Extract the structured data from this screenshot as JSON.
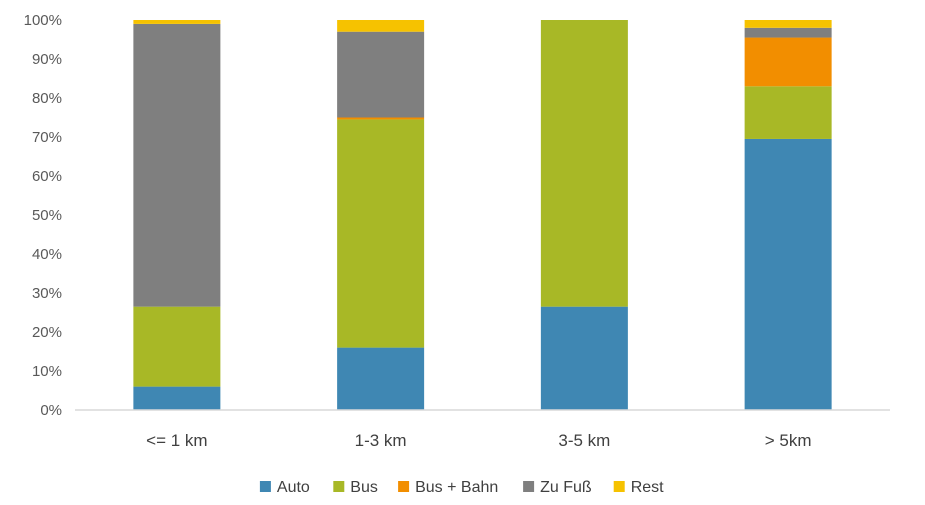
{
  "chart_data": {
    "type": "bar",
    "stacked": true,
    "percent": true,
    "categories": [
      "<= 1 km",
      "1-3 km",
      "3-5 km",
      "> 5km"
    ],
    "series": [
      {
        "name": "Auto",
        "color": "#3F87B3",
        "values": [
          6,
          16,
          26.5,
          69.5
        ]
      },
      {
        "name": "Bus",
        "color": "#A8B826",
        "values": [
          20.5,
          58.5,
          73.5,
          13.5
        ]
      },
      {
        "name": "Bus + Bahn",
        "color": "#F28E00",
        "values": [
          0,
          0.5,
          0,
          12.5
        ]
      },
      {
        "name": "Zu Fuß",
        "color": "#7F7F7F",
        "values": [
          72.5,
          22,
          0,
          2.5
        ]
      },
      {
        "name": "Rest",
        "color": "#F6C200",
        "values": [
          1,
          3,
          0,
          2
        ]
      }
    ],
    "y_ticks": [
      "0%",
      "10%",
      "20%",
      "30%",
      "40%",
      "50%",
      "60%",
      "70%",
      "80%",
      "90%",
      "100%"
    ],
    "ylim": [
      0,
      100
    ],
    "grid": false,
    "legend_position": "bottom-center"
  }
}
